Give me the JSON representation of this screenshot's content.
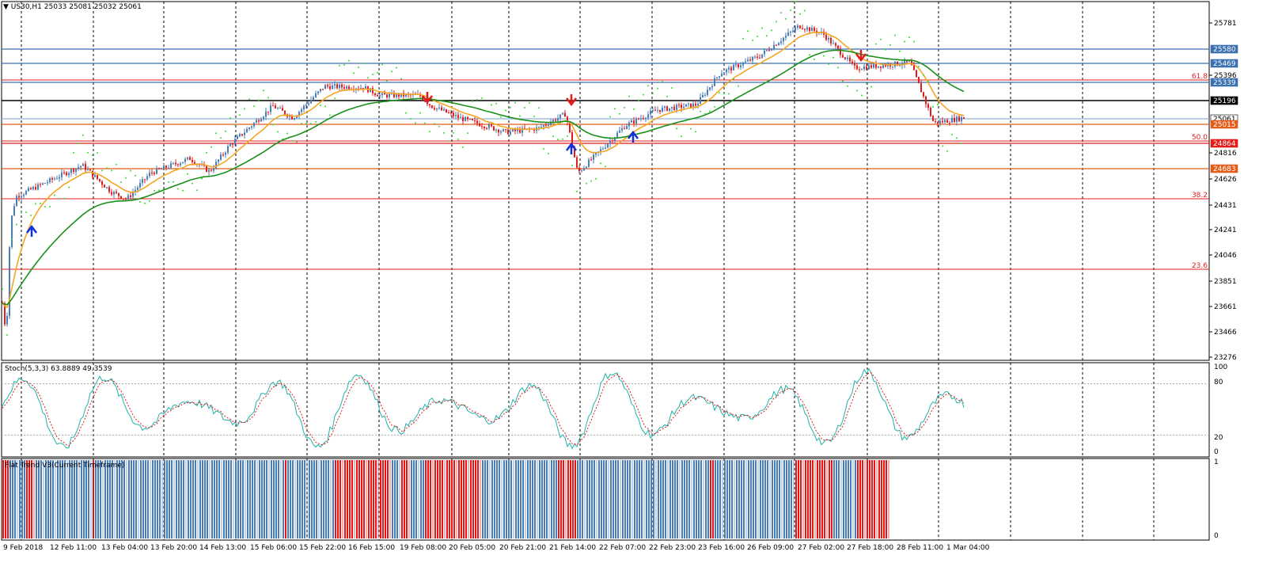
{
  "header": {
    "menu_arrow": "▼",
    "symbol_info": "US30,H1  25033 25081 25032 25061"
  },
  "colors": {
    "up_candle": "#4a7ebb",
    "down_candle": "#e21b1b",
    "ma_fast": "#f5a623",
    "ma_slow": "#1a8f1a",
    "psar": "#33dd33",
    "stoch_main": "#20b2aa",
    "stoch_signal": "#e21b1b",
    "trend_up": "#4a7ebb",
    "trend_down": "#ee1111",
    "level_blue": "#3a70b0",
    "level_orange": "#e25c1a",
    "level_red": "#e21b1b",
    "signal_up": "#1030e0",
    "signal_down": "#e21b1b"
  },
  "price_axis": {
    "ticks": [
      "25781",
      "25396",
      "24816",
      "24626",
      "24431",
      "24241",
      "24046",
      "23851",
      "23661",
      "23466",
      "23276"
    ]
  },
  "level_labels": [
    {
      "name": "level-25580",
      "text": "25580",
      "bg": "#3a70b0",
      "color": "#ffffff"
    },
    {
      "name": "level-25469",
      "text": "25469",
      "bg": "#3a70b0",
      "color": "#ffffff"
    },
    {
      "name": "level-25339",
      "text": "25339",
      "bg": "#3a70b0",
      "color": "#ffffff"
    },
    {
      "name": "level-25196",
      "text": "25196",
      "bg": "#000000",
      "color": "#ffffff"
    },
    {
      "name": "level-25061",
      "text": "25061",
      "bg": "#ffffff",
      "color": "#000000"
    },
    {
      "name": "level-25015",
      "text": "25015",
      "bg": "#e25c1a",
      "color": "#ffffff"
    },
    {
      "name": "level-24864",
      "text": "24864",
      "bg": "#e21b1b",
      "color": "#ffffff"
    },
    {
      "name": "level-24683",
      "text": "24683",
      "bg": "#e25c1a",
      "color": "#ffffff"
    }
  ],
  "fib_labels": [
    "61.8",
    "50.0",
    "38.2",
    "23.6"
  ],
  "stoch": {
    "title": "Stoch(5,3,3) 63.8889 49.3539",
    "levels": [
      "100",
      "80",
      "20",
      "0"
    ]
  },
  "trend": {
    "title": "Flat Trend V3(Current Timeframe)",
    "levels": [
      "1",
      "0"
    ]
  },
  "time_axis": {
    "labels": [
      "9 Feb 2018",
      "12 Feb 11:00",
      "13 Feb 04:00",
      "13 Feb 20:00",
      "14 Feb 13:00",
      "15 Feb 06:00",
      "15 Feb 22:00",
      "16 Feb 15:00",
      "19 Feb 08:00",
      "20 Feb 05:00",
      "20 Feb 21:00",
      "21 Feb 14:00",
      "22 Feb 07:00",
      "22 Feb 23:00",
      "23 Feb 16:00",
      "26 Feb 09:00",
      "27 Feb 02:00",
      "27 Feb 18:00",
      "28 Feb 11:00",
      "1 Mar 04:00"
    ]
  },
  "chart_data": {
    "type": "candlestick",
    "symbol": "US30",
    "timeframe": "H1",
    "last_bar": {
      "open": 25033,
      "high": 25081,
      "low": 25032,
      "close": 25061
    },
    "close_path": [
      [
        "9 Feb 2018",
        23700
      ],
      [
        "9 Feb 2018",
        23400
      ],
      [
        "9 Feb 2018",
        24250
      ],
      [
        "12 Feb 11:00",
        24460
      ],
      [
        "12 Feb 11:00",
        24700
      ],
      [
        "13 Feb 04:00",
        24500
      ],
      [
        "13 Feb 04:00",
        24440
      ],
      [
        "13 Feb 20:00",
        24640
      ],
      [
        "13 Feb 20:00",
        24750
      ],
      [
        "14 Feb 13:00",
        24650
      ],
      [
        "14 Feb 13:00",
        24850
      ],
      [
        "15 Feb 06:00",
        25150
      ],
      [
        "15 Feb 06:00",
        25060
      ],
      [
        "15 Feb 22:00",
        25300
      ],
      [
        "16 Feb 15:00",
        25290
      ],
      [
        "16 Feb 15:00",
        25230
      ],
      [
        "19 Feb 08:00",
        25230
      ],
      [
        "19 Feb 08:00",
        25150
      ],
      [
        "20 Feb 05:00",
        25060
      ],
      [
        "20 Feb 21:00",
        24950
      ],
      [
        "20 Feb 21:00",
        24980
      ],
      [
        "21 Feb 14:00",
        25090
      ],
      [
        "21 Feb 14:00",
        24640
      ],
      [
        "22 Feb 07:00",
        24760
      ],
      [
        "22 Feb 07:00",
        25000
      ],
      [
        "22 Feb 23:00",
        25120
      ],
      [
        "23 Feb 16:00",
        25160
      ],
      [
        "23 Feb 16:00",
        25400
      ],
      [
        "26 Feb 09:00",
        25530
      ],
      [
        "27 Feb 02:00",
        25760
      ],
      [
        "27 Feb 02:00",
        25700
      ],
      [
        "27 Feb 18:00",
        25440
      ],
      [
        "27 Feb 18:00",
        25450
      ],
      [
        "28 Feb 11:00",
        25480
      ],
      [
        "28 Feb 11:00",
        25020
      ],
      [
        "1 Mar 04:00",
        25061
      ]
    ],
    "horizontal_levels": [
      25580,
      25469,
      25339,
      25196,
      25061,
      25015,
      24864,
      24683
    ],
    "fibonacci_levels": [
      {
        "label": "61.8",
        "price": 25339
      },
      {
        "label": "50.0",
        "price": 24890
      },
      {
        "label": "38.2",
        "price": 24480
      },
      {
        "label": "23.6",
        "price": 23980
      }
    ],
    "stochastic": {
      "k": 63.8889,
      "d": 49.3539,
      "overbought": 80,
      "oversold": 20
    },
    "signals": [
      {
        "type": "buy",
        "time": "9 Feb 2018"
      },
      {
        "type": "sell",
        "time": "19 Feb 08:00"
      },
      {
        "type": "sell",
        "time": "21 Feb 14:00"
      },
      {
        "type": "buy",
        "time": "21 Feb 14:00"
      },
      {
        "type": "buy",
        "time": "22 Feb 07:00"
      },
      {
        "type": "sell",
        "time": "27 Feb 18:00"
      }
    ],
    "trend_segments": [
      [
        "down",
        3
      ],
      [
        "up",
        7
      ],
      [
        "down",
        4
      ],
      [
        "up",
        24
      ],
      [
        "down",
        1
      ],
      [
        "up",
        80
      ],
      [
        "down",
        1
      ],
      [
        "up",
        20
      ],
      [
        "down",
        24
      ],
      [
        "up",
        4
      ],
      [
        "down",
        4
      ],
      [
        "up",
        6
      ],
      [
        "down",
        24
      ],
      [
        "up",
        32
      ],
      [
        "down",
        8
      ],
      [
        "up",
        56
      ],
      [
        "down",
        2
      ],
      [
        "up",
        34
      ],
      [
        "down",
        16
      ],
      [
        "up",
        10
      ],
      [
        "down",
        14
      ]
    ]
  }
}
